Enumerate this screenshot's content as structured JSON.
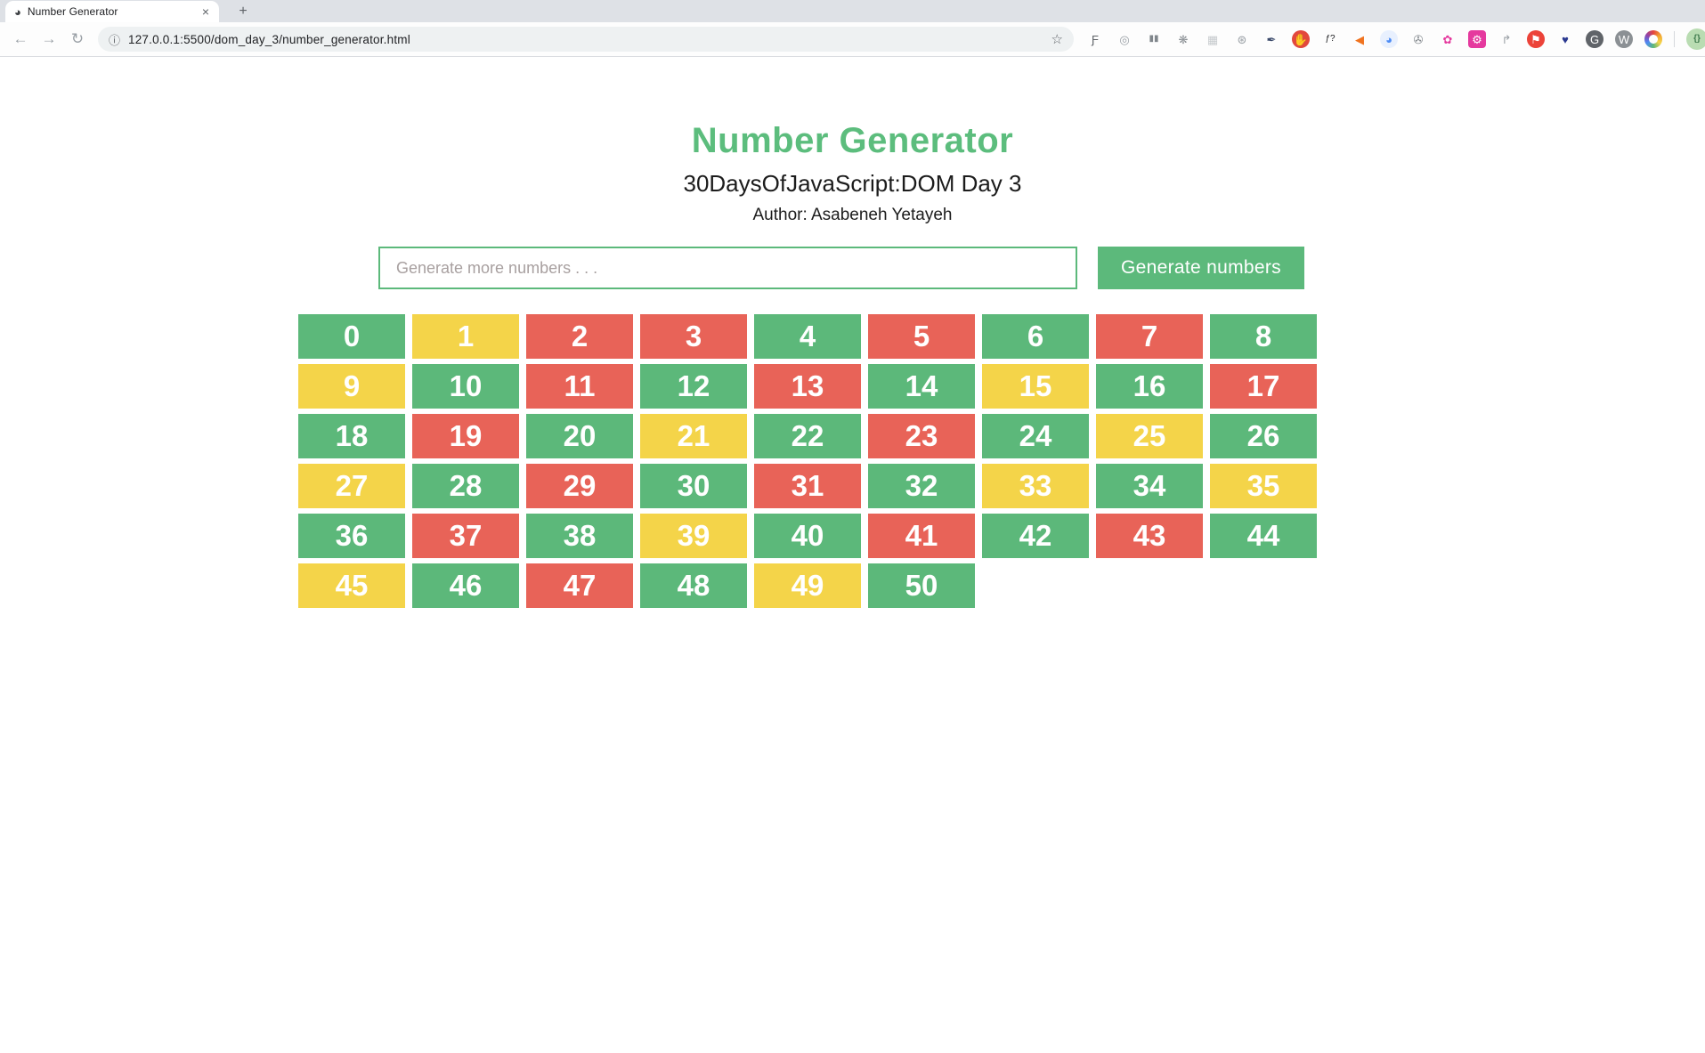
{
  "chrome": {
    "tab_title": "Number Generator",
    "url": "127.0.0.1:5500/dom_day_3/number_generator.html",
    "glyphs": {
      "favicon": "◕",
      "close": "×",
      "new_tab": "+",
      "back": "←",
      "forward": "→",
      "reload": "↻",
      "info": "ⓘ",
      "star": "☆",
      "menu": "⋮"
    },
    "extensions": [
      {
        "name": "font-scanner-icon",
        "glyph": "Ƒ",
        "fg": "#5f6368",
        "bg": "",
        "shape": "none"
      },
      {
        "name": "orbit-icon",
        "glyph": "◎",
        "fg": "#9aa0a6",
        "bg": "",
        "shape": "none"
      },
      {
        "name": "columns-icon",
        "glyph": "▮▮",
        "fg": "#80868b",
        "bg": "",
        "shape": "none"
      },
      {
        "name": "bug-icon",
        "glyph": "❋",
        "fg": "#8a8f94",
        "bg": "",
        "shape": "none"
      },
      {
        "name": "grid-icon",
        "glyph": "▦",
        "fg": "#c6cacd",
        "bg": "",
        "shape": "none"
      },
      {
        "name": "json-comment-icon",
        "glyph": "⊛",
        "fg": "#9aa0a6",
        "bg": "",
        "shape": "none"
      },
      {
        "name": "eyedropper-icon",
        "glyph": "✒",
        "fg": "#3b4a6b",
        "bg": "",
        "shape": "none"
      },
      {
        "name": "stop-hand-icon",
        "glyph": "✋",
        "fg": "#ffffff",
        "bg": "#E2483D",
        "shape": "circle"
      },
      {
        "name": "whatfont-icon",
        "glyph": "ƒ?",
        "fg": "#202124",
        "bg": "",
        "shape": "none"
      },
      {
        "name": "megaphone-icon",
        "glyph": "◀",
        "fg": "#F0731F",
        "bg": "",
        "shape": "none"
      },
      {
        "name": "swirl-icon",
        "glyph": "◕",
        "fg": "#4C8BF5",
        "bg": "#E8F0FE",
        "shape": "circle"
      },
      {
        "name": "camera-icon",
        "glyph": "✇",
        "fg": "#80868b",
        "bg": "",
        "shape": "none"
      },
      {
        "name": "flower-icon",
        "glyph": "✿",
        "fg": "#E5399E",
        "bg": "",
        "shape": "none"
      },
      {
        "name": "gear-icon",
        "glyph": "⚙",
        "fg": "#ffffff",
        "bg": "#E5399E",
        "shape": "square"
      },
      {
        "name": "corner-arrow-icon",
        "glyph": "↱",
        "fg": "#9aa0a6",
        "bg": "",
        "shape": "none"
      },
      {
        "name": "bookmark-icon",
        "glyph": "⚑",
        "fg": "#ffffff",
        "bg": "#EC4339",
        "shape": "circle"
      },
      {
        "name": "heart-search-icon",
        "glyph": "♥",
        "fg": "#2B3990",
        "bg": "",
        "shape": "none"
      },
      {
        "name": "g-circle-icon",
        "glyph": "G",
        "fg": "#ffffff",
        "bg": "#606469",
        "shape": "circle"
      },
      {
        "name": "w-circle-icon",
        "glyph": "W",
        "fg": "#ffffff",
        "bg": "#8b9094",
        "shape": "circle"
      },
      {
        "name": "color-ring-icon",
        "glyph": "",
        "fg": "",
        "bg": "",
        "shape": "ring"
      },
      {
        "name": "separator",
        "glyph": "",
        "fg": "",
        "bg": "",
        "shape": "sep"
      },
      {
        "name": "json-formatter-icon",
        "glyph": "{}",
        "fg": "#3f7a4d",
        "bg": "#b9dcb2",
        "shape": "circle",
        "active": true
      }
    ]
  },
  "page": {
    "title": "Number Generator",
    "subtitle": "30DaysOfJavaScript:DOM Day 3",
    "author": "Author: Asabeneh Yetayeh",
    "input_placeholder": "Generate more numbers . . .",
    "button_label": "Generate numbers",
    "colors": {
      "title_green": "#5CBD7D",
      "accent_green": "#5CB97B"
    }
  },
  "numbers": {
    "colors": {
      "even": "#5CB87A",
      "odd": "#F4D449",
      "prime": "#E86358"
    },
    "cells": [
      {
        "v": 0,
        "k": "even"
      },
      {
        "v": 1,
        "k": "odd"
      },
      {
        "v": 2,
        "k": "prime"
      },
      {
        "v": 3,
        "k": "prime"
      },
      {
        "v": 4,
        "k": "even"
      },
      {
        "v": 5,
        "k": "prime"
      },
      {
        "v": 6,
        "k": "even"
      },
      {
        "v": 7,
        "k": "prime"
      },
      {
        "v": 8,
        "k": "even"
      },
      {
        "v": 9,
        "k": "odd"
      },
      {
        "v": 10,
        "k": "even"
      },
      {
        "v": 11,
        "k": "prime"
      },
      {
        "v": 12,
        "k": "even"
      },
      {
        "v": 13,
        "k": "prime"
      },
      {
        "v": 14,
        "k": "even"
      },
      {
        "v": 15,
        "k": "odd"
      },
      {
        "v": 16,
        "k": "even"
      },
      {
        "v": 17,
        "k": "prime"
      },
      {
        "v": 18,
        "k": "even"
      },
      {
        "v": 19,
        "k": "prime"
      },
      {
        "v": 20,
        "k": "even"
      },
      {
        "v": 21,
        "k": "odd"
      },
      {
        "v": 22,
        "k": "even"
      },
      {
        "v": 23,
        "k": "prime"
      },
      {
        "v": 24,
        "k": "even"
      },
      {
        "v": 25,
        "k": "odd"
      },
      {
        "v": 26,
        "k": "even"
      },
      {
        "v": 27,
        "k": "odd"
      },
      {
        "v": 28,
        "k": "even"
      },
      {
        "v": 29,
        "k": "prime"
      },
      {
        "v": 30,
        "k": "even"
      },
      {
        "v": 31,
        "k": "prime"
      },
      {
        "v": 32,
        "k": "even"
      },
      {
        "v": 33,
        "k": "odd"
      },
      {
        "v": 34,
        "k": "even"
      },
      {
        "v": 35,
        "k": "odd"
      },
      {
        "v": 36,
        "k": "even"
      },
      {
        "v": 37,
        "k": "prime"
      },
      {
        "v": 38,
        "k": "even"
      },
      {
        "v": 39,
        "k": "odd"
      },
      {
        "v": 40,
        "k": "even"
      },
      {
        "v": 41,
        "k": "prime"
      },
      {
        "v": 42,
        "k": "even"
      },
      {
        "v": 43,
        "k": "prime"
      },
      {
        "v": 44,
        "k": "even"
      },
      {
        "v": 45,
        "k": "odd"
      },
      {
        "v": 46,
        "k": "even"
      },
      {
        "v": 47,
        "k": "prime"
      },
      {
        "v": 48,
        "k": "even"
      },
      {
        "v": 49,
        "k": "odd"
      },
      {
        "v": 50,
        "k": "even"
      }
    ]
  }
}
